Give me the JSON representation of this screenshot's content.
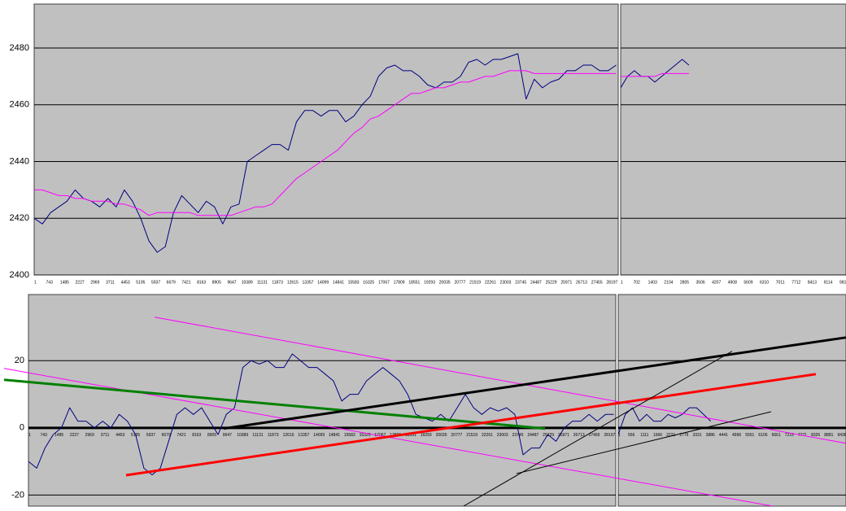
{
  "chart_data": [
    {
      "type": "line",
      "xlim": [
        1,
        28500
      ],
      "ylim": [
        2400,
        2495.5
      ],
      "xticks": [
        1,
        743,
        1485,
        2227,
        2969,
        3711,
        4453,
        5195,
        5937,
        6679,
        7421,
        8163,
        8905,
        9647,
        10389,
        11131,
        11873,
        12615,
        13357,
        14099,
        14841,
        15583,
        16325,
        17067,
        17809,
        18551,
        19293,
        20035,
        20777,
        21519,
        22261,
        23003,
        23745,
        24487,
        25229,
        25971,
        26713,
        27455,
        28197
      ],
      "yticks": [
        2400,
        2420,
        2440,
        2460,
        2480
      ],
      "grid": true,
      "background": "#c0c0c0",
      "x": [
        1,
        401,
        801,
        1201,
        1601,
        2001,
        2401,
        2801,
        3201,
        3601,
        4001,
        4401,
        4801,
        5201,
        5601,
        6001,
        6401,
        6801,
        7201,
        7601,
        8001,
        8401,
        8801,
        9201,
        9601,
        10001,
        10401,
        10801,
        11201,
        11601,
        12001,
        12401,
        12801,
        13201,
        13601,
        14001,
        14401,
        14801,
        15201,
        15601,
        16001,
        16401,
        16801,
        17201,
        17601,
        18001,
        18401,
        18801,
        19201,
        19601,
        20001,
        20401,
        20801,
        21201,
        21601,
        22001,
        22401,
        22801,
        23201,
        23601,
        24001,
        24401,
        24801,
        25201,
        25601,
        26001,
        26401,
        26801,
        27201,
        27601,
        28001,
        28401
      ],
      "series": [
        {
          "color": "#000080",
          "width": 1,
          "values": [
            2420,
            2418,
            2422,
            2424,
            2426,
            2430,
            2427,
            2426,
            2424,
            2427,
            2424,
            2430,
            2426,
            2420,
            2412,
            2408,
            2410,
            2422,
            2428,
            2425,
            2422,
            2426,
            2424,
            2418,
            2424,
            2425,
            2440,
            2442,
            2444,
            2446,
            2446,
            2444,
            2454,
            2458,
            2458,
            2456,
            2458,
            2458,
            2454,
            2456,
            2460,
            2463,
            2470,
            2473,
            2474,
            2472,
            2472,
            2470,
            2467,
            2466,
            2468,
            2468,
            2470,
            2475,
            2476,
            2474,
            2476,
            2476,
            2477,
            2478,
            2462,
            2469,
            2466,
            2468,
            2469,
            2472,
            2472,
            2474,
            2474,
            2472,
            2472,
            2474
          ]
        },
        {
          "color": "#ff00ff",
          "width": 1,
          "values": [
            2430,
            2430,
            2429,
            2428,
            2428,
            2427,
            2427,
            2426,
            2426,
            2426,
            2425,
            2425,
            2424,
            2423,
            2421,
            2422,
            2422,
            2422,
            2422,
            2422,
            2421,
            2421,
            2421,
            2421,
            2421,
            2422,
            2423,
            2424,
            2424,
            2425,
            2428,
            2431,
            2434,
            2436,
            2438,
            2440,
            2442,
            2444,
            2447,
            2450,
            2452,
            2455,
            2456,
            2458,
            2460,
            2462,
            2464,
            2464,
            2465,
            2466,
            2466,
            2467,
            2468,
            2468,
            2469,
            2470,
            2470,
            2471,
            2472,
            2472,
            2472,
            2471,
            2471,
            2471,
            2471,
            2471,
            2471,
            2471,
            2471,
            2471,
            2471,
            2471
          ]
        }
      ]
    },
    {
      "type": "line",
      "xlim": [
        1,
        9900
      ],
      "ylim": [
        2400,
        2495.5
      ],
      "xticks": [
        1,
        702,
        1403,
        2104,
        2805,
        3506,
        4207,
        4908,
        5609,
        6310,
        7011,
        7712,
        8413,
        9114,
        9815
      ],
      "grid": true,
      "background": "#c0c0c0",
      "x": [
        1,
        301,
        601,
        901,
        1201,
        1501,
        1801,
        2101,
        2401,
        2701,
        3001
      ],
      "series": [
        {
          "color": "#000080",
          "width": 1,
          "values": [
            2466,
            2470,
            2472,
            2470,
            2470,
            2468,
            2470,
            2472,
            2474,
            2476,
            2474
          ]
        },
        {
          "color": "#ff00ff",
          "width": 1,
          "values": [
            2470,
            2470,
            2470,
            2470,
            2470,
            2470,
            2471,
            2471,
            2471,
            2471,
            2471
          ]
        }
      ]
    },
    {
      "type": "line",
      "xlim": [
        1,
        28500
      ],
      "ylim": [
        -23.3,
        39.7
      ],
      "xticks": [
        1,
        743,
        1485,
        2227,
        2969,
        3711,
        4453,
        5195,
        5937,
        6679,
        7421,
        8163,
        8905,
        9647,
        10389,
        11131,
        11873,
        12615,
        13357,
        14099,
        14841,
        15583,
        16325,
        17067,
        17809,
        18551,
        19293,
        20035,
        20777,
        21519,
        22261,
        23003,
        23745,
        24487,
        25229,
        25971,
        26713,
        27455,
        28197
      ],
      "yticks": [
        -20,
        0,
        20
      ],
      "grid": true,
      "background": "#c0c0c0",
      "x": [
        1,
        401,
        801,
        1201,
        1601,
        2001,
        2401,
        2801,
        3201,
        3601,
        4001,
        4401,
        4801,
        5201,
        5601,
        6001,
        6401,
        6801,
        7201,
        7601,
        8001,
        8401,
        8801,
        9201,
        9601,
        10001,
        10401,
        10801,
        11201,
        11601,
        12001,
        12401,
        12801,
        13201,
        13601,
        14001,
        14401,
        14801,
        15201,
        15601,
        16001,
        16401,
        16801,
        17201,
        17601,
        18001,
        18401,
        18801,
        19201,
        19601,
        20001,
        20401,
        20801,
        21201,
        21601,
        22001,
        22401,
        22801,
        23201,
        23601,
        24001,
        24401,
        24801,
        25201,
        25601,
        26001,
        26401,
        26801,
        27201,
        27601,
        28001,
        28401
      ],
      "series": [
        {
          "color": "#000080",
          "width": 1,
          "values": [
            -10,
            -12,
            -6,
            -2,
            0,
            6,
            2,
            2,
            0,
            2,
            0,
            4,
            2,
            -2,
            -12,
            -14,
            -12,
            -4,
            4,
            6,
            4,
            6,
            2,
            -2,
            4,
            6,
            18,
            20,
            19,
            20,
            18,
            18,
            22,
            20,
            18,
            18,
            16,
            14,
            8,
            10,
            10,
            14,
            16,
            18,
            16,
            14,
            10,
            4,
            3,
            2,
            4,
            2,
            6,
            10,
            6,
            4,
            6,
            5,
            6,
            4,
            -8,
            -6,
            -6,
            -2,
            -4,
            0,
            2,
            2,
            4,
            2,
            4,
            4
          ]
        }
      ],
      "trendlines": [
        {
          "color": "#ff00ff",
          "width": 1,
          "x": [
            6118,
            39667
          ],
          "values": [
            33.0,
            -4.6
          ]
        },
        {
          "color": "#ff00ff",
          "width": 1,
          "x": [
            -1184,
            36115
          ],
          "values": [
            17.7,
            -23.3
          ]
        },
        {
          "color": "#008000",
          "width": 3,
          "x": [
            -1184,
            25064
          ],
          "values": [
            14.3,
            -0.2
          ]
        },
        {
          "color": "#ff0000",
          "width": 3,
          "x": [
            4736,
            38207
          ],
          "values": [
            -14.1,
            16.0
          ]
        },
        {
          "color": "#000000",
          "width": 3,
          "x": [
            9473,
            39667
          ],
          "values": [
            -0.2,
            26.9
          ]
        },
        {
          "color": "#000000",
          "width": 1,
          "x": [
            21116,
            34141
          ],
          "values": [
            -23.3,
            22.8
          ]
        },
        {
          "color": "#000000",
          "width": 1,
          "x": [
            23682,
            36036
          ],
          "values": [
            -13.6,
            4.8
          ]
        }
      ]
    },
    {
      "type": "line",
      "xlim": [
        1,
        9607
      ],
      "ylim": [
        -23.3,
        39.7
      ],
      "xticks": [
        1,
        556,
        1111,
        1666,
        2221,
        2776,
        3331,
        3886,
        4441,
        4996,
        5551,
        6106,
        6661,
        7216,
        7771,
        8326,
        8881,
        9436
      ],
      "grid": true,
      "background": "#c0c0c0",
      "x": [
        1,
        301,
        601,
        901,
        1201,
        1501,
        1801,
        2101,
        2401,
        2701,
        3001,
        3301,
        3601,
        3901
      ],
      "series": [
        {
          "color": "#000080",
          "width": 1,
          "values": [
            -2,
            4,
            6,
            2,
            4,
            2,
            2,
            4,
            3,
            4,
            6,
            6,
            4,
            2
          ]
        }
      ]
    }
  ]
}
